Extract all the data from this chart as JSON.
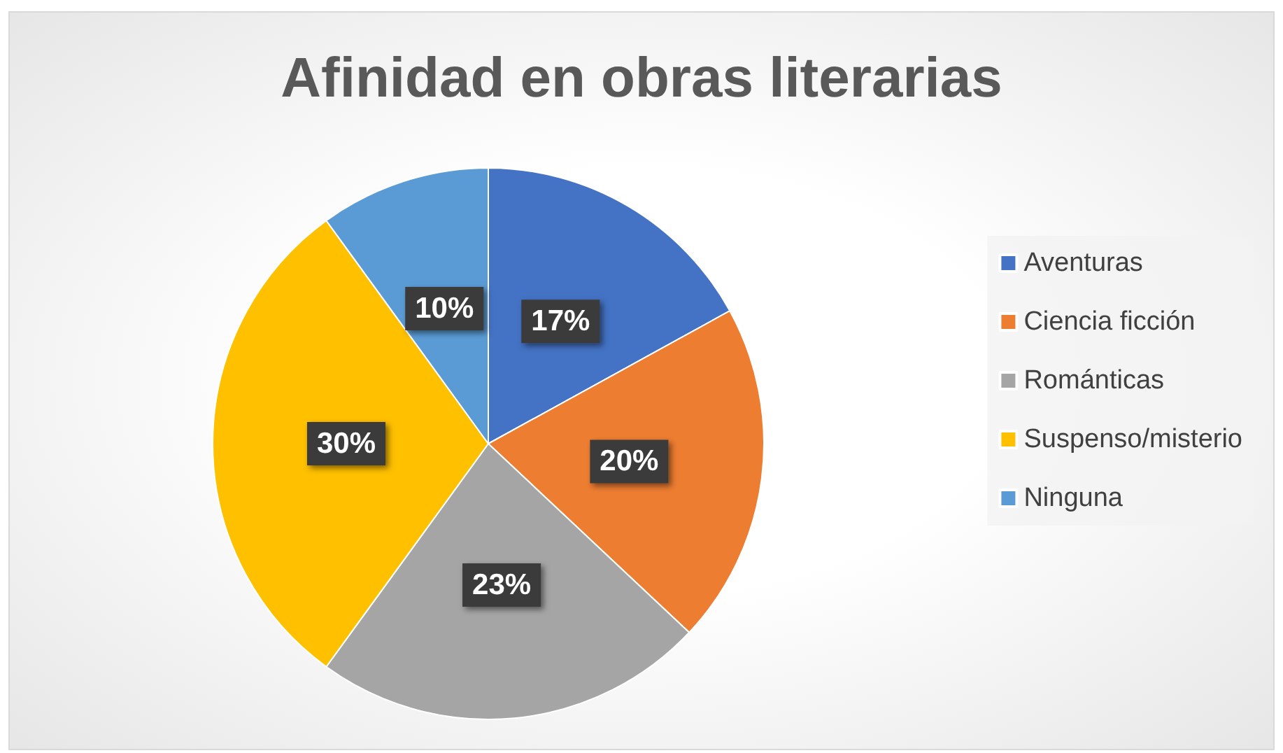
{
  "chart_data": {
    "type": "pie",
    "title": "Afinidad en obras literarias",
    "categories": [
      "Aventuras",
      "Ciencia ficción",
      "Románticas",
      "Suspenso/misterio",
      "Ninguna"
    ],
    "values": [
      17,
      20,
      23,
      30,
      10
    ],
    "value_labels": [
      "17%",
      "20%",
      "23%",
      "30%",
      "10%"
    ],
    "colors": [
      "#4472c4",
      "#ed7d31",
      "#a5a5a5",
      "#ffc000",
      "#5b9bd5"
    ],
    "legend": "right"
  }
}
